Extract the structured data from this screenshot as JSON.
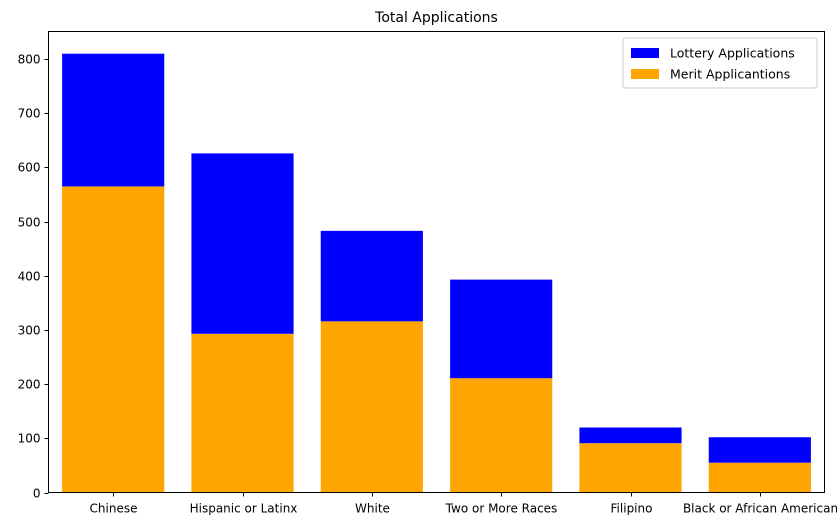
{
  "chart_data": {
    "type": "bar",
    "stacked": true,
    "title": "Total Applications",
    "xlabel": "",
    "ylabel": "",
    "categories": [
      "Chinese",
      "Hispanic or Latinx",
      "White",
      "Two or More Races",
      "Filipino",
      "Black or African American"
    ],
    "series": [
      {
        "name": "Merit Applicantions",
        "color": "#ffa500",
        "values": [
          565,
          293,
          316,
          211,
          91,
          55
        ]
      },
      {
        "name": "Lottery Applications",
        "color": "#0000ff",
        "values": [
          245,
          333,
          167,
          182,
          29,
          47
        ]
      }
    ],
    "legend_order": [
      "Lottery Applications",
      "Merit Applicantions"
    ],
    "yticks": [
      0,
      100,
      200,
      300,
      400,
      500,
      600,
      700,
      800
    ],
    "ylim": [
      0,
      851
    ],
    "grid": false,
    "legend_position": "top-right"
  }
}
